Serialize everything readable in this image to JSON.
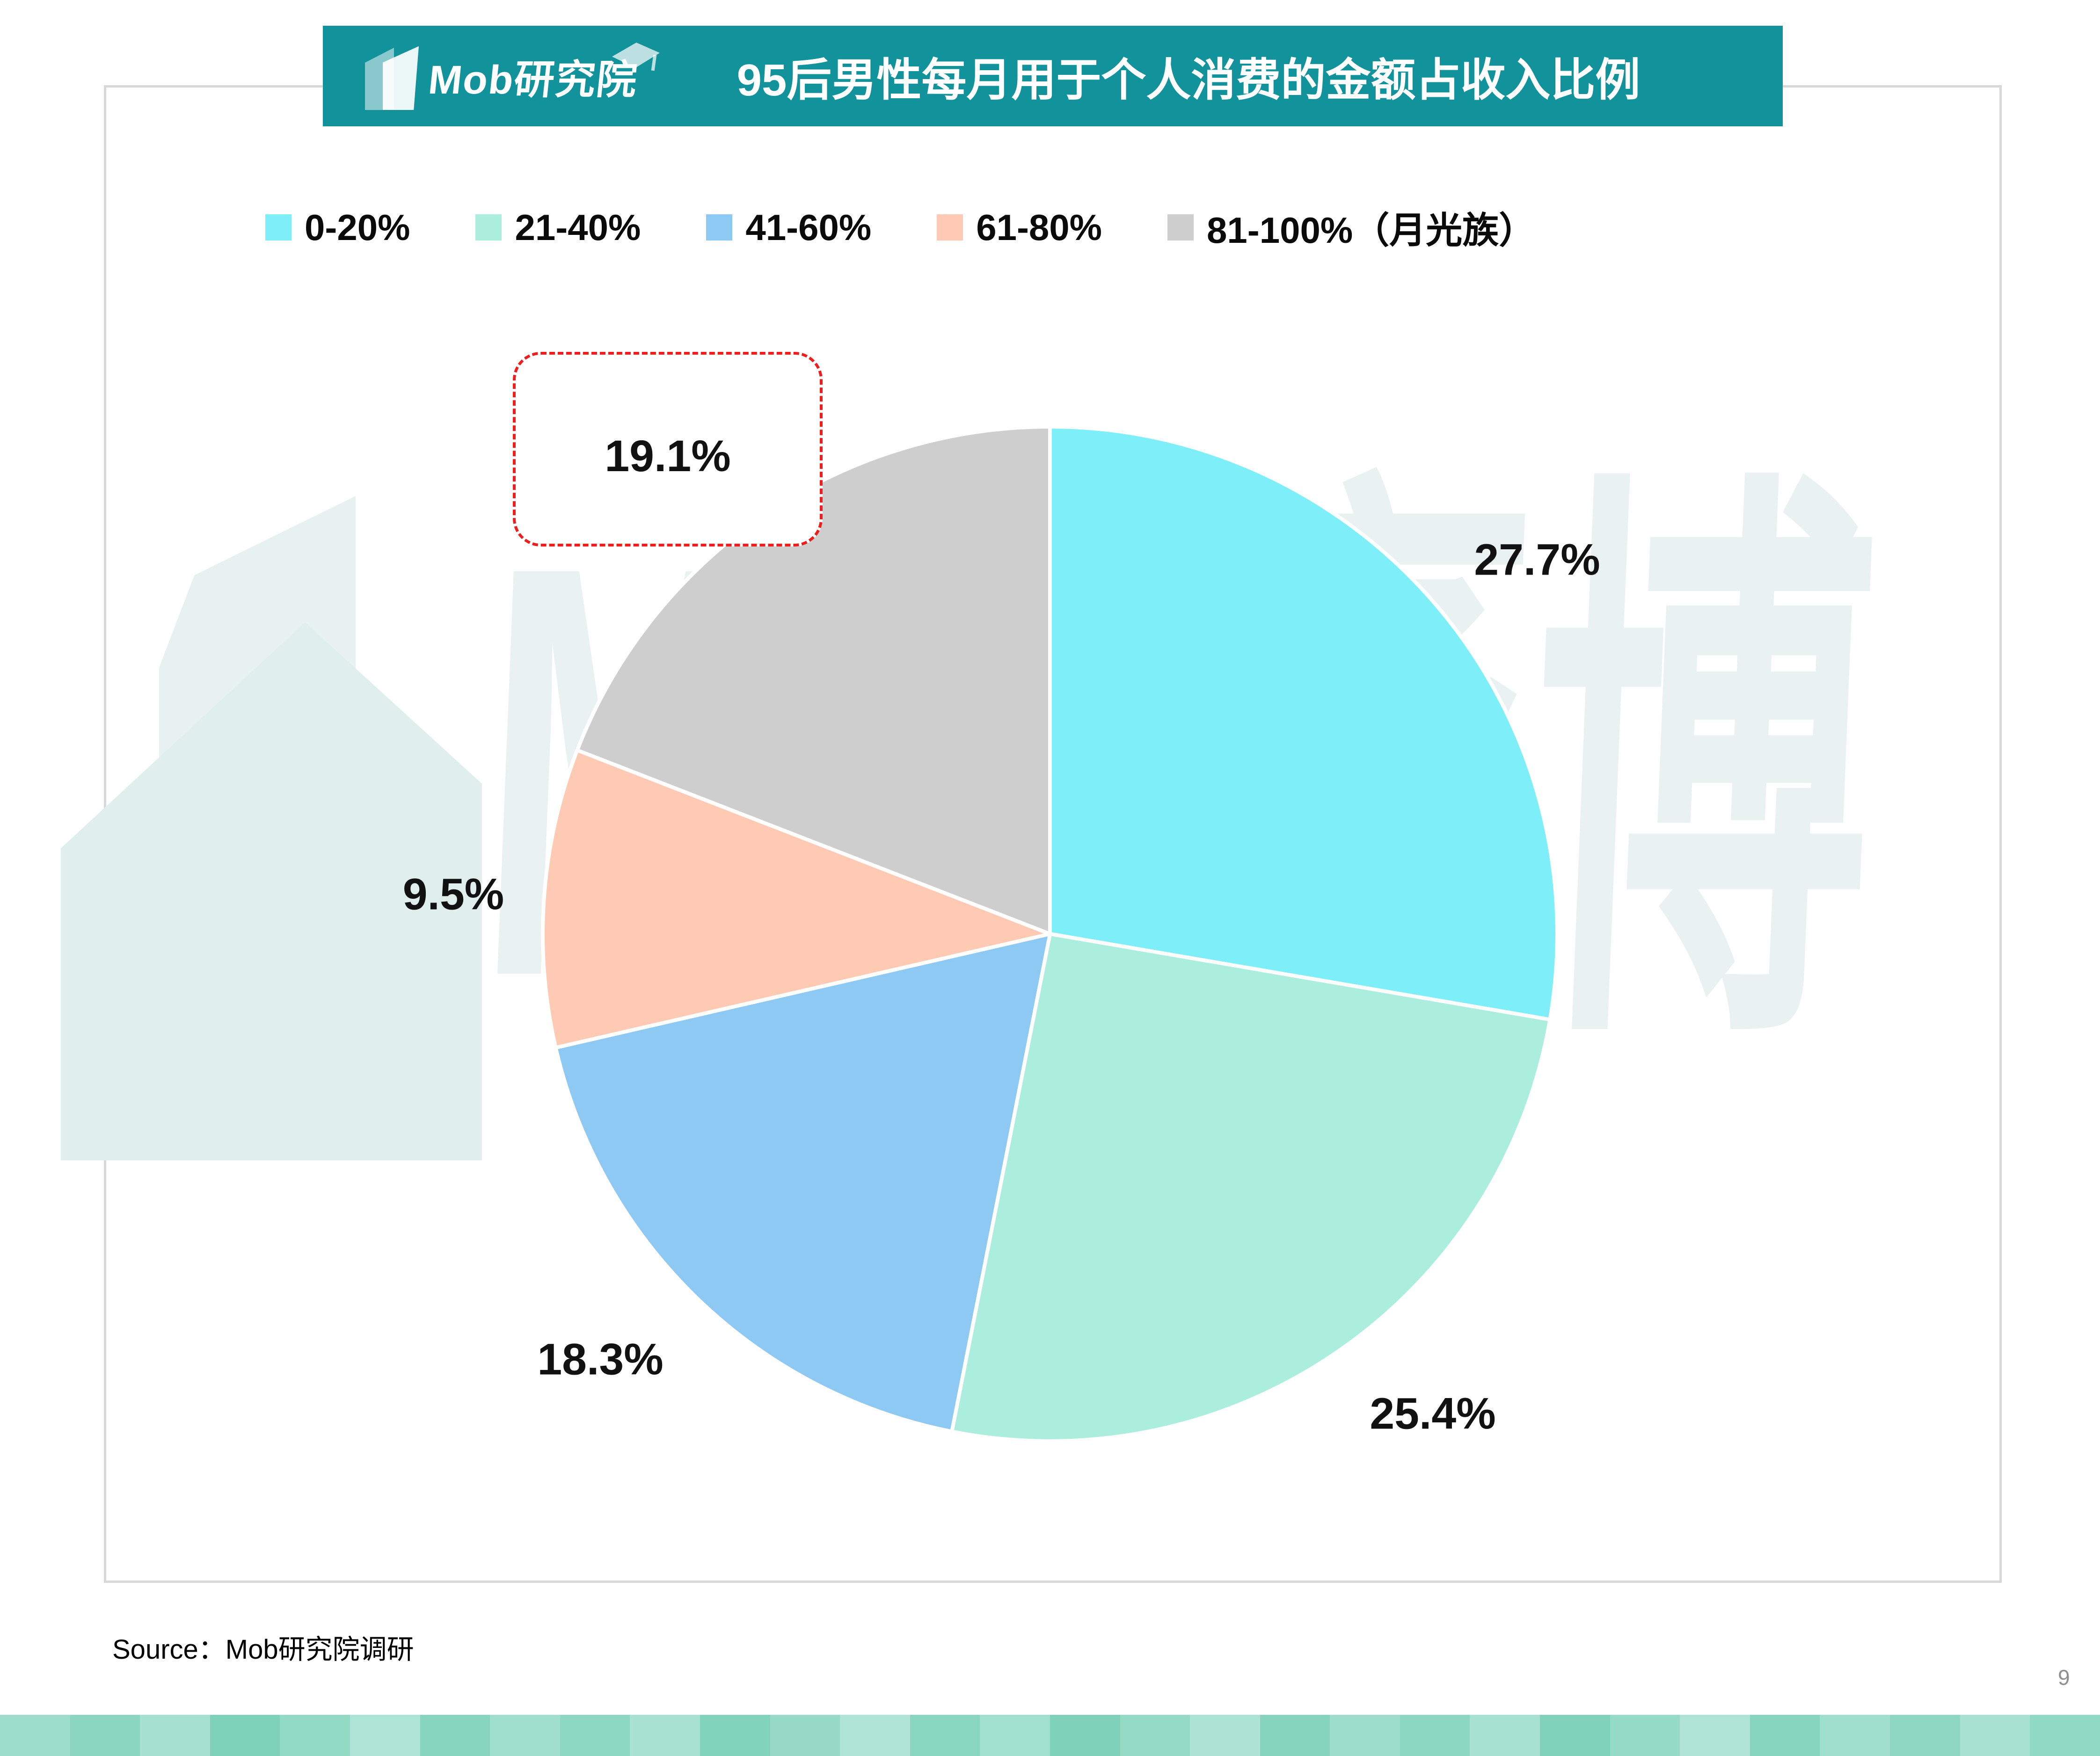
{
  "header": {
    "logo_text": "Mob研究院",
    "title": "95后男性每月用于个人消费的金额占收入比例",
    "banner_color": "#12939b"
  },
  "legend": {
    "position": "top",
    "items": [
      {
        "label": "0-20%",
        "color": "#7eeff8"
      },
      {
        "label": "21-40%",
        "color": "#abeedd"
      },
      {
        "label": "41-60%",
        "color": "#8ec9f3"
      },
      {
        "label": "61-80%",
        "color": "#fecab4"
      },
      {
        "label": "81-100%（月光族）",
        "color": "#cecece"
      }
    ]
  },
  "chart_data": {
    "type": "pie",
    "title": "95后男性每月用于个人消费的金额占收入比例",
    "categories": [
      "0-20%",
      "21-40%",
      "41-60%",
      "61-80%",
      "81-100%（月光族）"
    ],
    "values": [
      27.7,
      25.4,
      18.3,
      9.5,
      19.1
    ],
    "labels": [
      "27.7%",
      "25.4%",
      "18.3%",
      "9.5%",
      "19.1%"
    ],
    "colors": [
      "#7eeff8",
      "#abeedd",
      "#8ec9f3",
      "#fecab4",
      "#cecece"
    ],
    "unit": "%",
    "start_angle_deg": 0,
    "direction": "clockwise",
    "legend_position": "top",
    "highlight": {
      "category": "81-100%（月光族）",
      "label": "19.1%",
      "style": "red-dashed-rounded-box"
    }
  },
  "watermark": {
    "text": "Mob袤博"
  },
  "footer": {
    "source": "Source：Mob研究院调研",
    "page_number": "9",
    "strip_colors": [
      "#9bddc9",
      "#8ad6bf",
      "#a6e1d0",
      "#7ed2b8",
      "#93dac5",
      "#aee4d5",
      "#86d5bc",
      "#9fdfcb",
      "#8dd8c1",
      "#a9e2d1",
      "#81d3ba",
      "#97dbc7",
      "#b0e5d6",
      "#89d6be",
      "#a2e0ce",
      "#7fd2b9",
      "#94dac5",
      "#ace3d3",
      "#85d4bb",
      "#9ddeca",
      "#8bd7c0",
      "#a7e1d0",
      "#80d3b9",
      "#96dbc6",
      "#afe4d5",
      "#88d5bd",
      "#a0dfcc",
      "#8ed8c2",
      "#aae2d2",
      "#90d9c3"
    ]
  }
}
